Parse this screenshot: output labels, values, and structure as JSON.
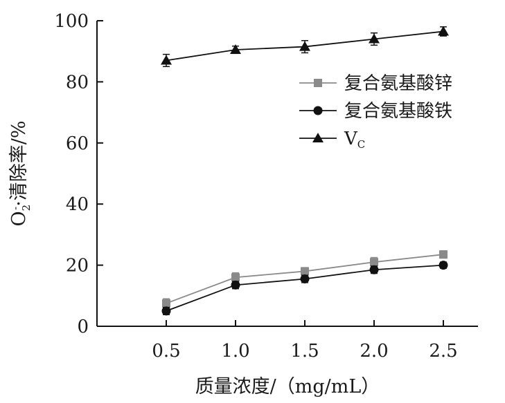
{
  "chart_data": {
    "type": "line",
    "title": "",
    "xlabel": "质量浓度/（mg/mL）",
    "ylabel": "O2-·清除率/%",
    "ylabel_parts": {
      "base": "O",
      "sub": "2",
      "sup": "-",
      "rest": "·清除率/%"
    },
    "x": [
      0.5,
      1.0,
      1.5,
      2.0,
      2.5
    ],
    "x_tick_labels": [
      "0.5",
      "1.0",
      "1.5",
      "2.0",
      "2.5"
    ],
    "y_ticks": [
      0,
      20,
      40,
      60,
      80,
      100
    ],
    "y_tick_labels": [
      "0",
      "20",
      "40",
      "60",
      "80",
      "100"
    ],
    "xlim": [
      0.0,
      2.75
    ],
    "ylim": [
      0,
      100
    ],
    "grid": false,
    "legend_position": "right, upper-middle",
    "series": [
      {
        "name": "复合氨基酸锌",
        "marker": "square",
        "color": "#8a8a8a",
        "values": [
          7.5,
          16.0,
          18.0,
          21.0,
          23.5
        ],
        "errors": [
          1.5,
          1.5,
          1.2,
          1.5,
          1.2
        ]
      },
      {
        "name": "复合氨基酸铁",
        "marker": "circle",
        "color": "#111111",
        "values": [
          5.0,
          13.5,
          15.5,
          18.5,
          20.0
        ],
        "errors": [
          1.2,
          1.2,
          1.2,
          1.2,
          1.0
        ]
      },
      {
        "name": "V",
        "name_sub": "C",
        "marker": "triangle",
        "color": "#111111",
        "values": [
          87.0,
          90.5,
          91.5,
          94.0,
          96.5
        ],
        "errors": [
          2.0,
          1.2,
          2.0,
          2.0,
          1.5
        ]
      }
    ]
  }
}
